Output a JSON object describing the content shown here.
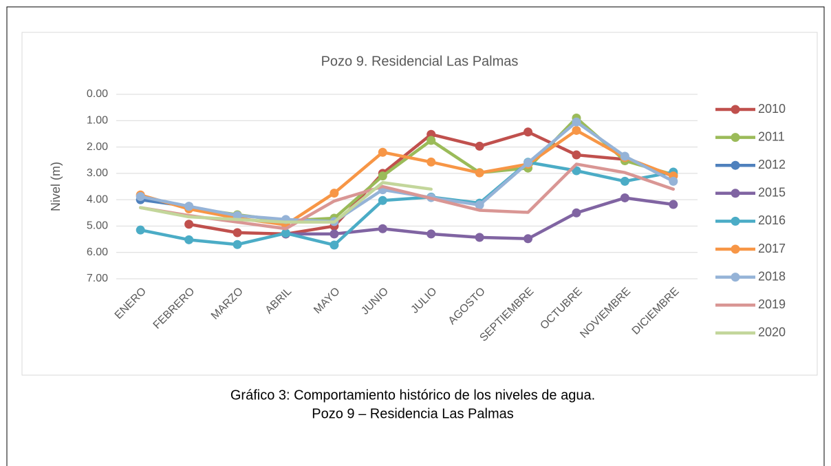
{
  "chart_data": {
    "type": "line",
    "title": "Pozo 9. Residencial Las Palmas",
    "y_label": "Nivel (m)",
    "y_inverted": true,
    "grid": true,
    "legend": "right",
    "categories": [
      "ENERO",
      "FEBRERO",
      "MARZO",
      "ABRIL",
      "MAYO",
      "JUNIO",
      "JULIO",
      "AGOSTO",
      "SEPTIEMBRE",
      "OCTUBRE",
      "NOVIEMBRE",
      "DICIEMBRE"
    ],
    "ylim": [
      0,
      7
    ],
    "yticks": [
      {
        "value": 0,
        "label": "0.00"
      },
      {
        "value": 1,
        "label": "1.00"
      },
      {
        "value": 2,
        "label": "2.00"
      },
      {
        "value": 3,
        "label": "3.00"
      },
      {
        "value": 4,
        "label": "4.00"
      },
      {
        "value": 5,
        "label": "5.00"
      },
      {
        "value": 6,
        "label": "6.00"
      },
      {
        "value": 7,
        "label": "7.00"
      }
    ],
    "series": [
      {
        "name": "2010",
        "color": "#c0504d",
        "markers": true,
        "values": [
          null,
          4.93,
          5.25,
          5.3,
          5.0,
          3.0,
          1.52,
          1.97,
          1.43,
          2.3,
          2.47,
          3.1
        ]
      },
      {
        "name": "2011",
        "color": "#9bbb59",
        "markers": true,
        "values": [
          null,
          4.3,
          4.57,
          4.8,
          4.7,
          3.1,
          1.75,
          2.97,
          2.8,
          0.9,
          2.52,
          3.05
        ]
      },
      {
        "name": "2012",
        "color": "#4f81bd",
        "markers": true,
        "values": [
          4.0,
          4.25,
          null,
          null,
          null,
          null,
          null,
          null,
          null,
          null,
          null,
          null
        ]
      },
      {
        "name": "2015",
        "color": "#8064a2",
        "markers": true,
        "values": [
          null,
          null,
          null,
          5.3,
          5.3,
          5.1,
          5.3,
          5.43,
          5.48,
          4.5,
          3.93,
          4.18
        ]
      },
      {
        "name": "2016",
        "color": "#4bacc6",
        "markers": true,
        "values": [
          5.15,
          5.52,
          5.7,
          5.27,
          5.72,
          4.03,
          3.9,
          4.13,
          2.58,
          2.9,
          3.3,
          2.95
        ]
      },
      {
        "name": "2017",
        "color": "#f79646",
        "markers": true,
        "values": [
          3.82,
          4.35,
          4.7,
          4.95,
          3.75,
          2.2,
          2.57,
          2.98,
          2.65,
          1.37,
          2.4,
          3.1
        ]
      },
      {
        "name": "2018",
        "color": "#95b3d7",
        "markers": true,
        "values": [
          3.88,
          4.25,
          4.6,
          4.75,
          4.83,
          3.62,
          3.92,
          4.2,
          2.6,
          1.05,
          2.35,
          3.3
        ]
      },
      {
        "name": "2019",
        "color": "#d99694",
        "markers": false,
        "values": [
          4.3,
          4.6,
          4.85,
          5.1,
          4.05,
          3.5,
          3.95,
          4.4,
          4.48,
          2.65,
          2.97,
          3.6
        ]
      },
      {
        "name": "2020",
        "color": "#c3d69b",
        "markers": false,
        "values": [
          4.3,
          4.65,
          4.75,
          4.85,
          4.85,
          3.35,
          3.6,
          null,
          null,
          null,
          null,
          null
        ]
      }
    ]
  },
  "caption": [
    "Gráfico 3: Comportamiento histórico de los niveles de agua.",
    "Pozo 9 – Residencia Las Palmas"
  ]
}
